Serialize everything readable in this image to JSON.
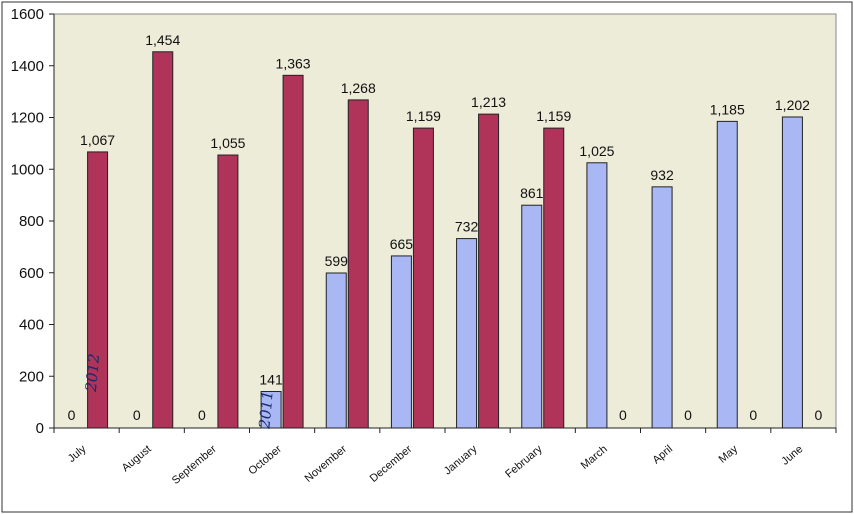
{
  "colors": {
    "series_2012": "#b0345a",
    "series_2011": "#a9b8f5",
    "plot_background": "#ececd9",
    "border": "#333333"
  },
  "chart_data": {
    "type": "bar",
    "title": "",
    "xlabel": "",
    "ylabel": "",
    "ylim": [
      0,
      1600
    ],
    "yticks": [
      0,
      200,
      400,
      600,
      800,
      1000,
      1200,
      1400,
      1600
    ],
    "grid": false,
    "legend": "none",
    "categories": [
      "July",
      "August",
      "September",
      "October",
      "November",
      "December",
      "January",
      "February",
      "March",
      "April",
      "May",
      "June"
    ],
    "series": [
      {
        "key": "blue",
        "color": "#a9b8f5",
        "values": [
          0,
          0,
          0,
          141,
          599,
          665,
          732,
          861,
          1025,
          932,
          1185,
          1202
        ],
        "labels": [
          "0",
          "0",
          "0",
          "141",
          "599",
          "665",
          "732",
          "861",
          "1,025",
          "932",
          "1,185",
          "1,202"
        ]
      },
      {
        "key": "red",
        "color": "#b0345a",
        "values": [
          1067,
          1454,
          1055,
          1363,
          1268,
          1159,
          1213,
          1159,
          0,
          0,
          0,
          0
        ],
        "labels": [
          "1,067",
          "1,454",
          "1,055",
          "1,363",
          "1,268",
          "1,159",
          "1,213",
          "1,159",
          "0",
          "0",
          "0",
          "0"
        ]
      }
    ],
    "annotations": [
      {
        "text": "2012",
        "category": "July",
        "series": "red"
      },
      {
        "text": "2011",
        "category": "October",
        "series": "blue"
      }
    ]
  }
}
